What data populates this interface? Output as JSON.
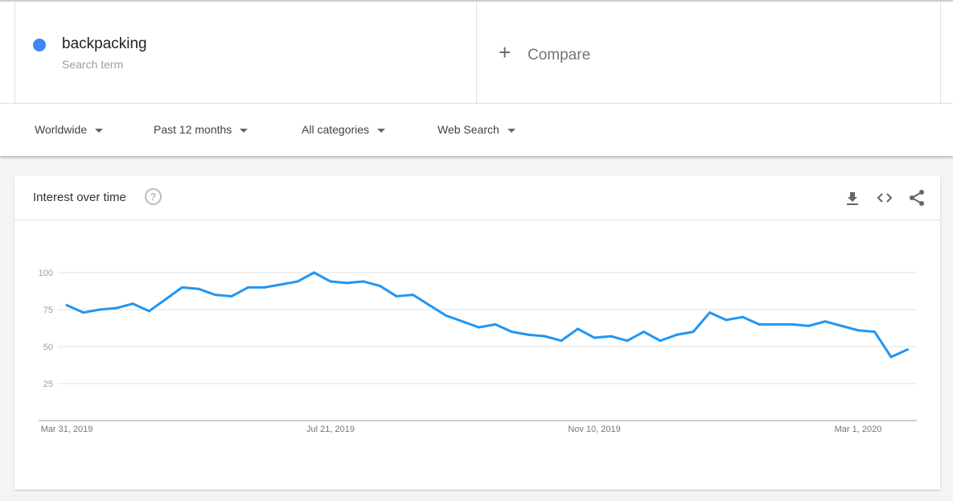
{
  "search_term": {
    "name": "backpacking",
    "subtitle": "Search term",
    "color": "#4285f4"
  },
  "compare": {
    "label": "Compare",
    "icon": "plus-icon"
  },
  "filters": [
    {
      "label": "Worldwide"
    },
    {
      "label": "Past 12 months"
    },
    {
      "label": "All categories"
    },
    {
      "label": "Web Search"
    }
  ],
  "card": {
    "title": "Interest over time",
    "help_icon": "?",
    "actions": [
      "download-icon",
      "embed-code-icon",
      "share-icon"
    ]
  },
  "chart_data": {
    "type": "line",
    "title": "Interest over time",
    "x_start": "2019-03-31",
    "x_interval": "weekly",
    "x_tick_labels": [
      "Mar 31, 2019",
      "Jul 21, 2019",
      "Nov 10, 2019",
      "Mar 1, 2020"
    ],
    "x_tick_indices": [
      0,
      16,
      32,
      48
    ],
    "y_ticks": [
      25,
      50,
      75,
      100
    ],
    "ylim": [
      0,
      100
    ],
    "grid": true,
    "series": [
      {
        "color": "#2196f3",
        "values": [
          78,
          73,
          75,
          76,
          79,
          74,
          82,
          90,
          89,
          85,
          84,
          90,
          90,
          92,
          94,
          100,
          94,
          93,
          94,
          91,
          84,
          85,
          78,
          71,
          67,
          63,
          65,
          60,
          58,
          57,
          54,
          62,
          56,
          57,
          54,
          60,
          54,
          58,
          60,
          73,
          68,
          70,
          65,
          65,
          65,
          64,
          67,
          64,
          61,
          60,
          43,
          48
        ]
      }
    ]
  }
}
